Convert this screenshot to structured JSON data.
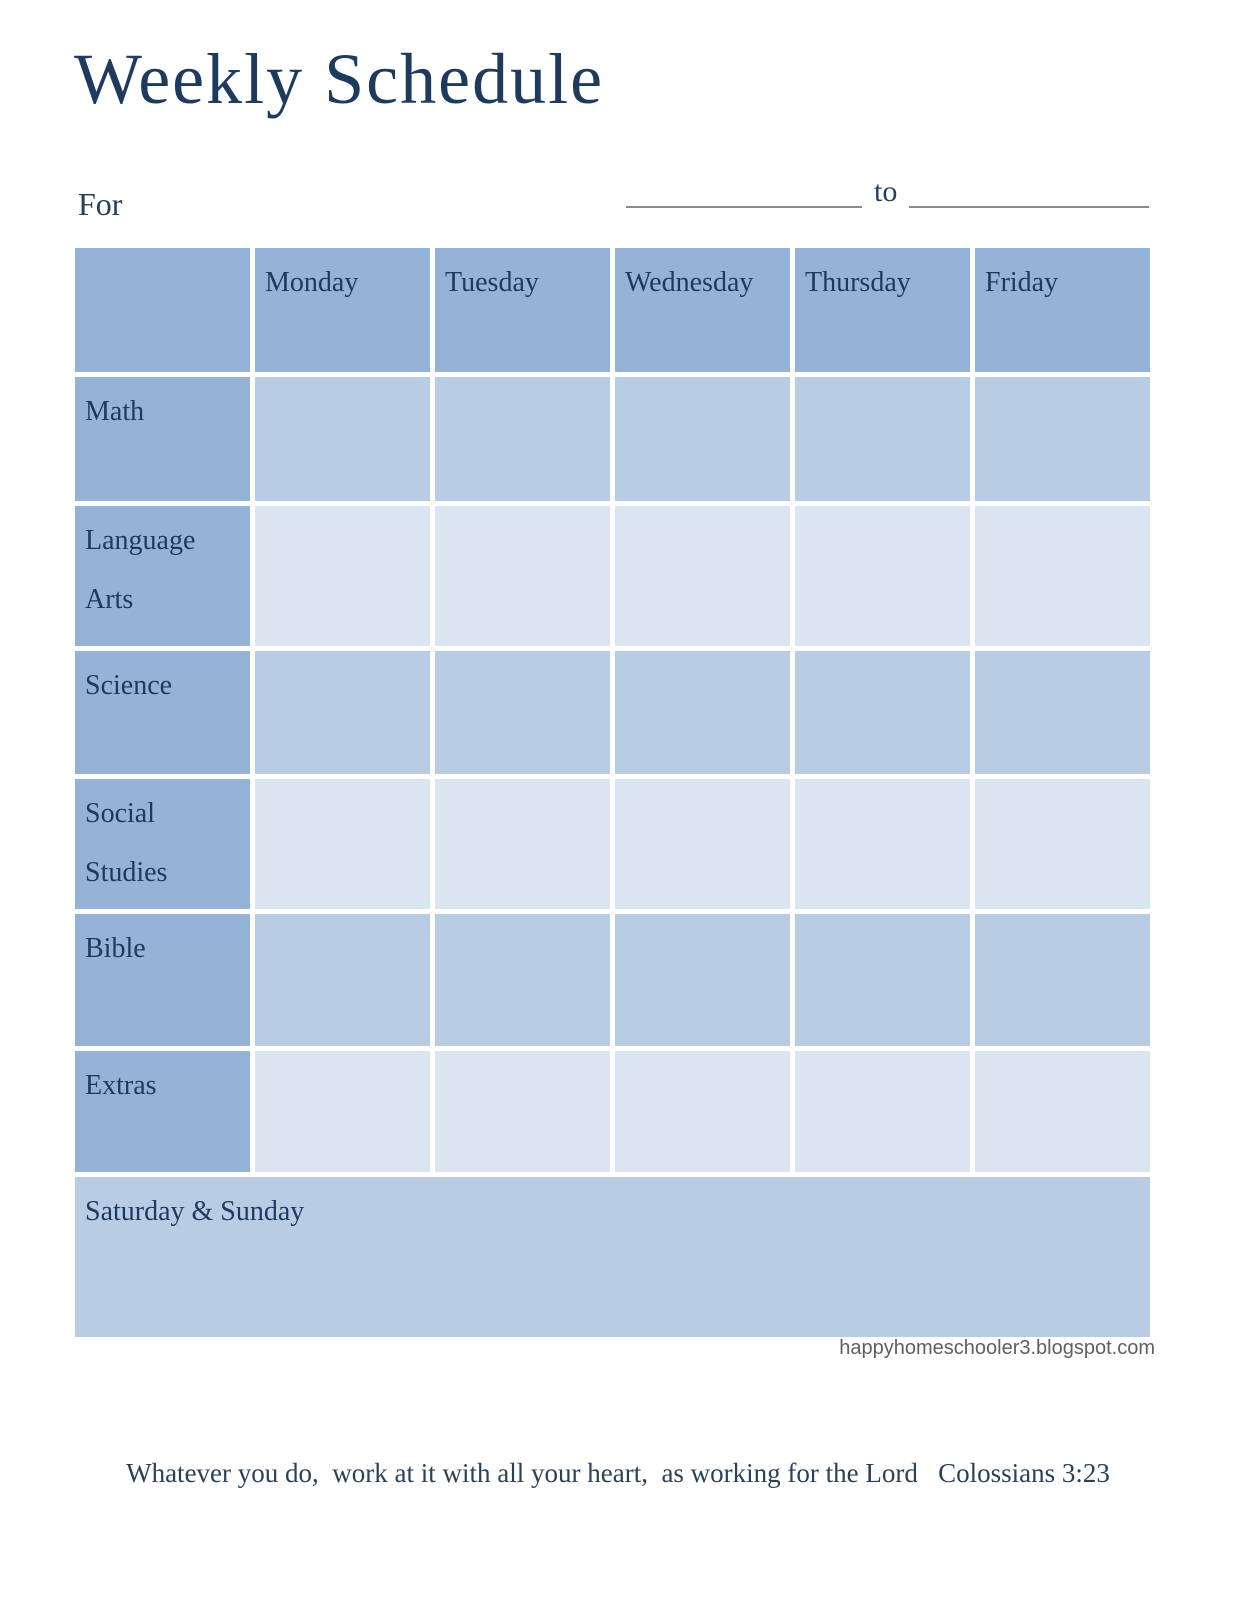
{
  "page": {
    "title": "Weekly Schedule"
  },
  "for_section": {
    "for_label": "For",
    "to_label": "to",
    "date_from_value": "",
    "date_to_value": ""
  },
  "table": {
    "corner_label": "",
    "day_headers": [
      "Monday",
      "Tuesday",
      "Wednesday",
      "Thursday",
      "Friday"
    ],
    "rows": [
      {
        "label": "Math"
      },
      {
        "label": "Language Arts"
      },
      {
        "label": "Science"
      },
      {
        "label": "Social Studies"
      },
      {
        "label": "Bible"
      },
      {
        "label": "Extras"
      }
    ],
    "weekend_row": {
      "label": "Saturday & Sunday"
    }
  },
  "footer": {
    "site_url": "happyhomeschooler3.blogspot.com"
  },
  "quote": {
    "line": "Whatever you do,  work at it with all your heart,  as working for the Lord   Colossians 3:23"
  },
  "colors": {
    "header_blue": "#95b3d7",
    "medium_row_blue": "#b8cce4",
    "light_row_blue": "#dbe5f1",
    "navy_text": "#1e3a5e",
    "underline_gray": "#8a8a8a",
    "url_gray": "#5f5f5f"
  }
}
